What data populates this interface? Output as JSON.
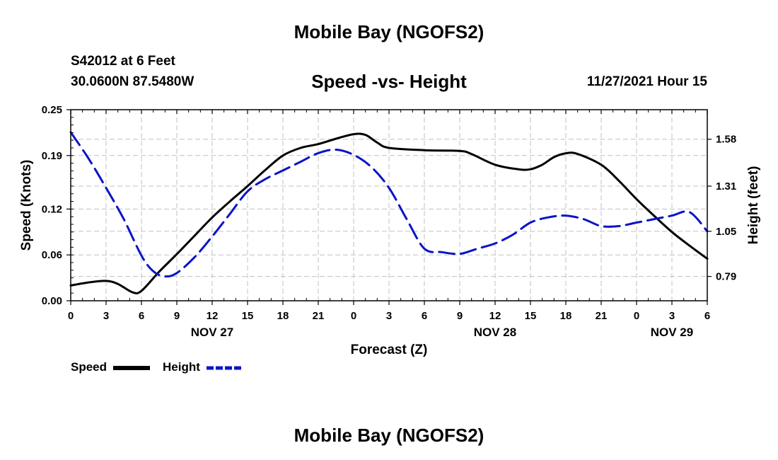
{
  "header": {
    "title": "Mobile Bay (NGOFS2)",
    "station": "S42012 at 6 Feet",
    "coordinates": "30.0600N  87.5480W",
    "chart_title": "Speed -vs- Height",
    "timestamp": "11/27/2021 Hour 15"
  },
  "legend": {
    "speed_label": "Speed",
    "height_label": "Height"
  },
  "footer": {
    "title": "Mobile Bay (NGOFS2)"
  },
  "colors": {
    "speed": "#000000",
    "height": "#0a14c8",
    "grid": "#c0c0c0"
  },
  "chart_data": {
    "type": "line",
    "title": "Speed -vs- Height",
    "xlabel": "Forecast (Z)",
    "ylabel": "Speed (Knots)",
    "ylabel_right": "Height (feet)",
    "x_hours": [
      0,
      3,
      6,
      9,
      12,
      15,
      18,
      21,
      24,
      27,
      30,
      33,
      36,
      39,
      42,
      45,
      48,
      51,
      54
    ],
    "x_tick_labels": [
      "0",
      "3",
      "6",
      "9",
      "12",
      "15",
      "18",
      "21",
      "0",
      "3",
      "6",
      "9",
      "12",
      "15",
      "18",
      "21",
      "0",
      "3",
      "6"
    ],
    "date_labels": [
      {
        "hour": 12,
        "label": "NOV 27"
      },
      {
        "hour": 36,
        "label": "NOV 28"
      },
      {
        "hour": 51,
        "label": "NOV 29"
      }
    ],
    "xlim": [
      0,
      54
    ],
    "ylim": [
      0,
      0.25
    ],
    "yticks": [
      0.0,
      0.06,
      0.12,
      0.19,
      0.25
    ],
    "ylim_right": [
      0.65,
      1.75
    ],
    "yticks_right": [
      0.79,
      1.05,
      1.31,
      1.58
    ],
    "grid": true,
    "series": [
      {
        "name": "Speed",
        "axis": "left",
        "style": "solid",
        "x": [
          0,
          1.5,
          3,
          4,
          5.25,
          6,
          7.5,
          9,
          10.5,
          12,
          13.5,
          15,
          16.5,
          18,
          19.5,
          21,
          22.5,
          24,
          25,
          26,
          27,
          30,
          33,
          34,
          36,
          38,
          39,
          40,
          41,
          42,
          43,
          45,
          46.5,
          48,
          49.5,
          51,
          52.5,
          54
        ],
        "values": [
          0.02,
          0.024,
          0.026,
          0.022,
          0.011,
          0.013,
          0.038,
          0.061,
          0.085,
          0.109,
          0.13,
          0.15,
          0.171,
          0.19,
          0.2,
          0.205,
          0.212,
          0.218,
          0.217,
          0.207,
          0.2,
          0.197,
          0.196,
          0.192,
          0.178,
          0.172,
          0.172,
          0.178,
          0.188,
          0.193,
          0.192,
          0.178,
          0.157,
          0.133,
          0.111,
          0.09,
          0.072,
          0.055
        ]
      },
      {
        "name": "Height",
        "axis": "right",
        "style": "dashed",
        "x": [
          0,
          1.5,
          3,
          4.5,
          6,
          7,
          8,
          9,
          10.5,
          12,
          13.5,
          15,
          16.5,
          18,
          19.5,
          21,
          22.5,
          24,
          25.5,
          27,
          28.5,
          30,
          31.5,
          33,
          34.5,
          36,
          37.5,
          39,
          40.5,
          42,
          43.5,
          45,
          46.5,
          48,
          49.5,
          51,
          52.5,
          54
        ],
        "values": [
          1.62,
          1.47,
          1.3,
          1.12,
          0.91,
          0.82,
          0.79,
          0.81,
          0.9,
          1.02,
          1.15,
          1.28,
          1.35,
          1.4,
          1.45,
          1.5,
          1.52,
          1.49,
          1.42,
          1.3,
          1.12,
          0.95,
          0.93,
          0.92,
          0.95,
          0.98,
          1.03,
          1.1,
          1.13,
          1.14,
          1.12,
          1.08,
          1.08,
          1.1,
          1.12,
          1.14,
          1.16,
          1.05
        ]
      }
    ]
  }
}
